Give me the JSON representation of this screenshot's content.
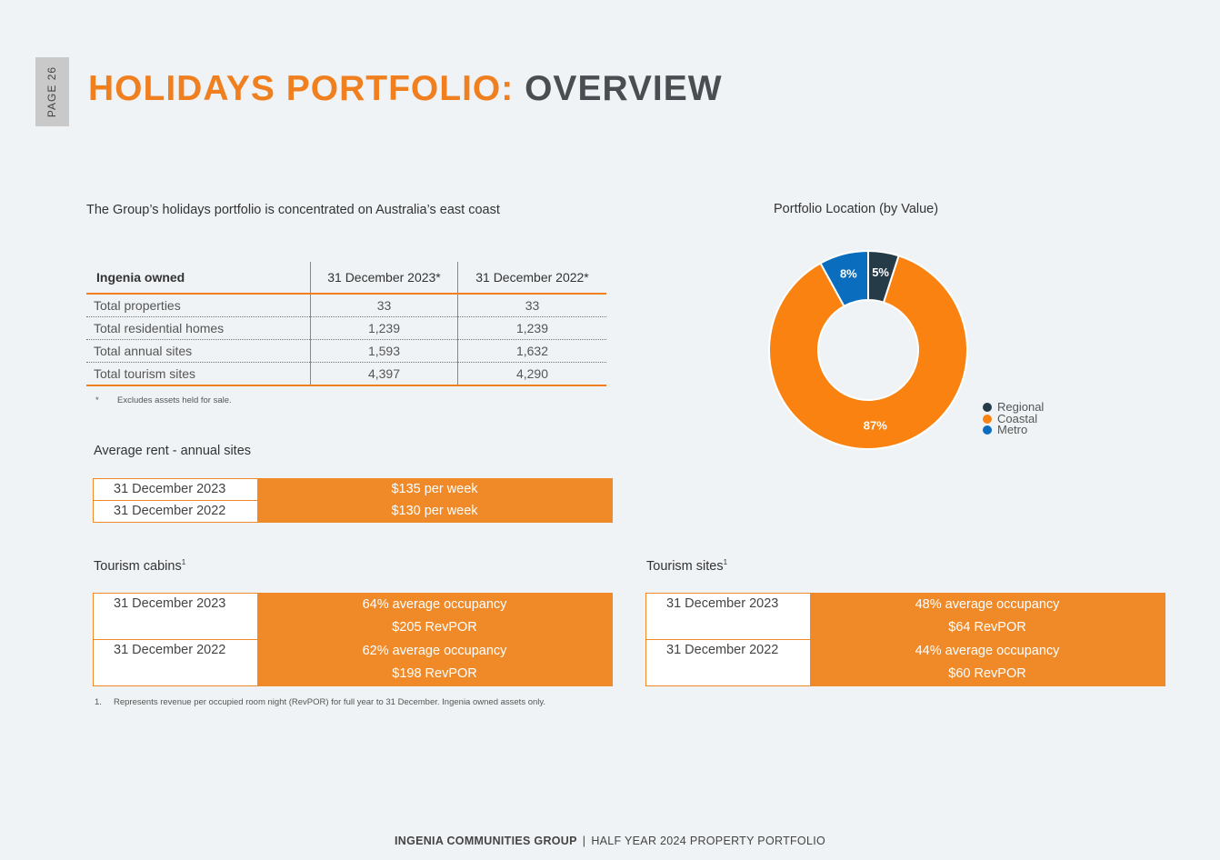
{
  "page_label": "PAGE 26",
  "title": {
    "part1": "HOLIDAYS PORTFOLIO:",
    "part2": "OVERVIEW"
  },
  "intro": "The Group’s holidays portfolio is concentrated on Australia’s east coast",
  "owned_table": {
    "headers": [
      "Ingenia owned",
      "31 December 2023*",
      "31 December 2022*"
    ],
    "rows": [
      [
        "Total properties",
        "33",
        "33"
      ],
      [
        "Total residential homes",
        "1,239",
        "1,239"
      ],
      [
        "Total annual sites",
        "1,593",
        "1,632"
      ],
      [
        "Total tourism sites",
        "4,397",
        "4,290"
      ]
    ],
    "footnote_mark": "*",
    "footnote": "Excludes assets held for sale."
  },
  "average_rent": {
    "title": "Average rent - annual sites",
    "rows": [
      {
        "label": "31 December 2023",
        "value": "$135 per week"
      },
      {
        "label": "31 December 2022",
        "value": "$130 per week"
      }
    ]
  },
  "tourism_cabins": {
    "title": "Tourism cabins",
    "sup": "1",
    "rows": [
      {
        "label": "31 December 2023",
        "line1": "64% average occupancy",
        "line2": "$205 RevPOR"
      },
      {
        "label": "31 December 2022",
        "line1": "62% average occupancy",
        "line2": "$198 RevPOR"
      }
    ]
  },
  "tourism_sites": {
    "title": "Tourism sites",
    "sup": "1",
    "rows": [
      {
        "label": "31 December 2023",
        "line1": "48% average occupancy",
        "line2": "$64 RevPOR"
      },
      {
        "label": "31 December 2022",
        "line1": "44% average occupancy",
        "line2": "$60 RevPOR"
      }
    ]
  },
  "footnote2": {
    "mark": "1.",
    "text": "Represents revenue per occupied room night (RevPOR) for full year to 31 December. Ingenia owned assets only."
  },
  "chart_data": {
    "type": "pie",
    "title": "Portfolio Location (by Value)",
    "donut": true,
    "series": [
      {
        "name": "Regional",
        "value": 5,
        "label": "5%",
        "color": "#263b48"
      },
      {
        "name": "Coastal",
        "value": 87,
        "label": "87%",
        "color": "#fa8211"
      },
      {
        "name": "Metro",
        "value": 8,
        "label": "8%",
        "color": "#0a6dbe"
      }
    ],
    "legend_position": "right"
  },
  "footer": {
    "company": "INGENIA COMMUNITIES GROUP",
    "separator": "|",
    "doc": "HALF YEAR 2024 PROPERTY PORTFOLIO"
  }
}
